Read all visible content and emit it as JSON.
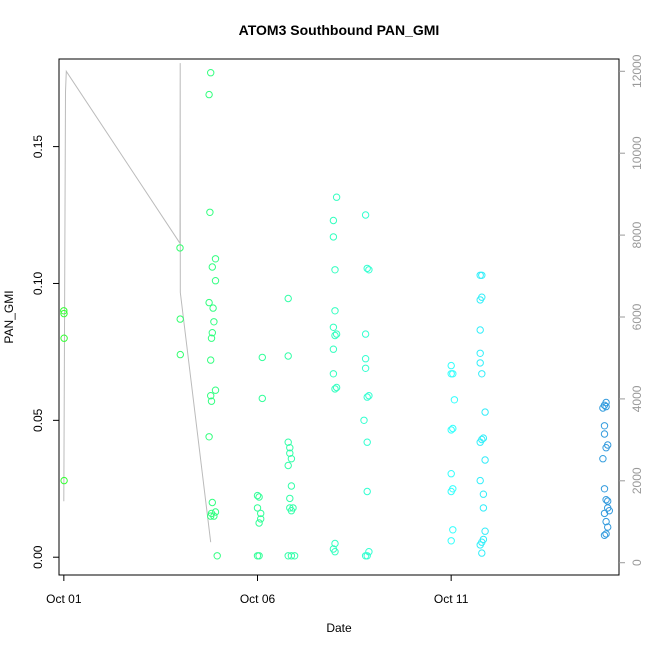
{
  "chart_data": {
    "type": "scatter",
    "title": "ATOM3 Southbound PAN_GMI",
    "xlabel": "Date",
    "ylabel": "PAN_GMI",
    "x_unit": "date",
    "xlim": [
      "2016-09-30T21:00",
      "2016-10-15T08:00"
    ],
    "ylim": [
      -0.0065,
      0.182
    ],
    "x_ticks": [
      "2016-10-01",
      "2016-10-06",
      "2016-10-11"
    ],
    "x_tick_labels": [
      "Oct 01",
      "Oct 06",
      "Oct 11"
    ],
    "y_ticks": [
      0.0,
      0.05,
      0.1,
      0.15
    ],
    "y_tick_labels": [
      "0.00",
      "0.05",
      "0.10",
      "0.15"
    ],
    "y2_ylim": [
      -300,
      12300
    ],
    "y2_ticks": [
      0,
      2000,
      4000,
      6000,
      8000,
      10000,
      12000
    ],
    "y2_tick_labels": [
      "0",
      "2000",
      "4000",
      "6000",
      "8000",
      "10000",
      "12000"
    ],
    "grid": false,
    "colors": {
      "point_start": "#33ff33",
      "point_mid": "#33ffff",
      "point_end": "#3399dd",
      "altitude_line": "#bbbbbb",
      "right_axis": "#999999"
    },
    "series": [
      {
        "marker": "open-circle",
        "color_scale": "green-to-blue by time",
        "points": [
          [
            "2016-10-01T00:00",
            0.09
          ],
          [
            "2016-10-01T00:05",
            0.089
          ],
          [
            "2016-10-01T00:08",
            0.08
          ],
          [
            "2016-10-01T00:10",
            0.028
          ],
          [
            "2016-10-04T00:00",
            0.113
          ],
          [
            "2016-10-04T00:05",
            0.087
          ],
          [
            "2016-10-04T00:10",
            0.074
          ],
          [
            "2016-10-04T19:00",
            0.177
          ],
          [
            "2016-10-04T18:00",
            0.169
          ],
          [
            "2016-10-04T18:30",
            0.126
          ],
          [
            "2016-10-04T22:00",
            0.109
          ],
          [
            "2016-10-04T20:00",
            0.106
          ],
          [
            "2016-10-04T22:00",
            0.101
          ],
          [
            "2016-10-04T18:00",
            0.093
          ],
          [
            "2016-10-04T20:30",
            0.091
          ],
          [
            "2016-10-04T21:00",
            0.086
          ],
          [
            "2016-10-04T20:00",
            0.082
          ],
          [
            "2016-10-04T19:30",
            0.08
          ],
          [
            "2016-10-04T19:00",
            0.072
          ],
          [
            "2016-10-04T22:00",
            0.061
          ],
          [
            "2016-10-04T19:00",
            0.059
          ],
          [
            "2016-10-04T19:30",
            0.057
          ],
          [
            "2016-10-04T18:00",
            0.044
          ],
          [
            "2016-10-04T20:00",
            0.02
          ],
          [
            "2016-10-04T19:30",
            0.016
          ],
          [
            "2016-10-04T19:00",
            0.015
          ],
          [
            "2016-10-04T21:00",
            0.015
          ],
          [
            "2016-10-04T22:00",
            0.0165
          ],
          [
            "2016-10-04T23:00",
            0.0005
          ],
          [
            "2016-10-06T00:00",
            0.0225
          ],
          [
            "2016-10-06T01:00",
            0.022
          ],
          [
            "2016-10-06T00:00",
            0.018
          ],
          [
            "2016-10-06T02:00",
            0.016
          ],
          [
            "2016-10-06T01:00",
            0.0125
          ],
          [
            "2016-10-06T02:00",
            0.014
          ],
          [
            "2016-10-06T03:00",
            0.073
          ],
          [
            "2016-10-06T03:00",
            0.058
          ],
          [
            "2016-10-06T00:00",
            0.0005
          ],
          [
            "2016-10-06T01:00",
            0.0005
          ],
          [
            "2016-10-06T19:00",
            0.0945
          ],
          [
            "2016-10-06T19:00",
            0.0735
          ],
          [
            "2016-10-06T19:00",
            0.042
          ],
          [
            "2016-10-06T20:00",
            0.04
          ],
          [
            "2016-10-06T20:00",
            0.038
          ],
          [
            "2016-10-06T21:00",
            0.036
          ],
          [
            "2016-10-06T19:00",
            0.0335
          ],
          [
            "2016-10-06T21:00",
            0.026
          ],
          [
            "2016-10-06T20:00",
            0.0215
          ],
          [
            "2016-10-06T20:00",
            0.018
          ],
          [
            "2016-10-06T21:00",
            0.017
          ],
          [
            "2016-10-06T22:00",
            0.018
          ],
          [
            "2016-10-06T19:00",
            0.0005
          ],
          [
            "2016-10-06T21:00",
            0.0005
          ],
          [
            "2016-10-06T23:00",
            0.0005
          ],
          [
            "2016-10-07T23:00",
            0.123
          ],
          [
            "2016-10-07T23:00",
            0.117
          ],
          [
            "2016-10-08T00:00",
            0.105
          ],
          [
            "2016-10-08T00:00",
            0.09
          ],
          [
            "2016-10-07T23:00",
            0.084
          ],
          [
            "2016-10-08T01:00",
            0.0815
          ],
          [
            "2016-10-08T00:00",
            0.081
          ],
          [
            "2016-10-07T23:00",
            0.076
          ],
          [
            "2016-10-07T23:00",
            0.067
          ],
          [
            "2016-10-08T01:00",
            0.062
          ],
          [
            "2016-10-08T00:00",
            0.0615
          ],
          [
            "2016-10-08T01:00",
            0.1315
          ],
          [
            "2016-10-08T00:00",
            0.005
          ],
          [
            "2016-10-07T23:00",
            0.003
          ],
          [
            "2016-10-08T00:00",
            0.002
          ],
          [
            "2016-10-08T19:00",
            0.125
          ],
          [
            "2016-10-08T20:00",
            0.1055
          ],
          [
            "2016-10-08T21:00",
            0.105
          ],
          [
            "2016-10-08T19:00",
            0.0815
          ],
          [
            "2016-10-08T19:00",
            0.0725
          ],
          [
            "2016-10-08T19:00",
            0.069
          ],
          [
            "2016-10-08T20:00",
            0.0585
          ],
          [
            "2016-10-08T21:00",
            0.059
          ],
          [
            "2016-10-08T18:00",
            0.05
          ],
          [
            "2016-10-08T20:00",
            0.042
          ],
          [
            "2016-10-08T20:00",
            0.024
          ],
          [
            "2016-10-08T21:00",
            0.002
          ],
          [
            "2016-10-08T19:00",
            0.0005
          ],
          [
            "2016-10-08T20:00",
            0.0005
          ],
          [
            "2016-10-11T00:00",
            0.07
          ],
          [
            "2016-10-11T01:00",
            0.067
          ],
          [
            "2016-10-11T00:00",
            0.067
          ],
          [
            "2016-10-11T02:00",
            0.0575
          ],
          [
            "2016-10-11T00:00",
            0.0465
          ],
          [
            "2016-10-11T01:00",
            0.047
          ],
          [
            "2016-10-11T00:00",
            0.0305
          ],
          [
            "2016-10-11T01:00",
            0.025
          ],
          [
            "2016-10-11T00:00",
            0.024
          ],
          [
            "2016-10-11T01:00",
            0.01
          ],
          [
            "2016-10-11T00:00",
            0.006
          ],
          [
            "2016-10-11T18:00",
            0.103
          ],
          [
            "2016-10-11T19:00",
            0.103
          ],
          [
            "2016-10-11T19:00",
            0.095
          ],
          [
            "2016-10-11T18:00",
            0.094
          ],
          [
            "2016-10-11T18:00",
            0.083
          ],
          [
            "2016-10-11T18:00",
            0.0745
          ],
          [
            "2016-10-11T18:00",
            0.071
          ],
          [
            "2016-10-11T19:00",
            0.067
          ],
          [
            "2016-10-11T21:00",
            0.053
          ],
          [
            "2016-10-11T19:00",
            0.043
          ],
          [
            "2016-10-11T20:00",
            0.0435
          ],
          [
            "2016-10-11T18:00",
            0.042
          ],
          [
            "2016-10-11T21:00",
            0.0355
          ],
          [
            "2016-10-11T18:00",
            0.028
          ],
          [
            "2016-10-11T20:00",
            0.023
          ],
          [
            "2016-10-11T20:00",
            0.018
          ],
          [
            "2016-10-11T21:00",
            0.0095
          ],
          [
            "2016-10-11T20:00",
            0.0065
          ],
          [
            "2016-10-11T19:00",
            0.0055
          ],
          [
            "2016-10-11T18:00",
            0.0045
          ],
          [
            "2016-10-11T19:00",
            0.0015
          ],
          [
            "2016-10-14T23:00",
            0.0555
          ],
          [
            "2016-10-15T00:00",
            0.0565
          ],
          [
            "2016-10-15T00:00",
            0.055
          ],
          [
            "2016-10-14T22:00",
            0.0545
          ],
          [
            "2016-10-14T23:00",
            0.048
          ],
          [
            "2016-10-14T23:00",
            0.045
          ],
          [
            "2016-10-15T01:00",
            0.041
          ],
          [
            "2016-10-15T00:00",
            0.04
          ],
          [
            "2016-10-14T22:00",
            0.036
          ],
          [
            "2016-10-14T23:00",
            0.025
          ],
          [
            "2016-10-15T00:00",
            0.021
          ],
          [
            "2016-10-15T01:00",
            0.0205
          ],
          [
            "2016-10-15T01:00",
            0.018
          ],
          [
            "2016-10-15T02:00",
            0.017
          ],
          [
            "2016-10-14T23:00",
            0.016
          ],
          [
            "2016-10-15T00:00",
            0.013
          ],
          [
            "2016-10-15T01:00",
            0.011
          ],
          [
            "2016-10-14T23:00",
            0.008
          ],
          [
            "2016-10-15T00:00",
            0.0085
          ]
        ]
      },
      {
        "axis": "right",
        "style": "line",
        "color": "#bbbbbb",
        "points": [
          [
            "2016-10-01T00:00",
            1500
          ],
          [
            "2016-10-01T01:00",
            11500
          ],
          [
            "2016-10-01T01:30",
            12000
          ],
          [
            "2016-10-04T00:00",
            7800
          ],
          [
            "2016-10-04T00:05",
            12200
          ],
          [
            "2016-10-04T00:10",
            6600
          ],
          [
            "2016-10-04T19:00",
            500
          ]
        ]
      }
    ]
  }
}
